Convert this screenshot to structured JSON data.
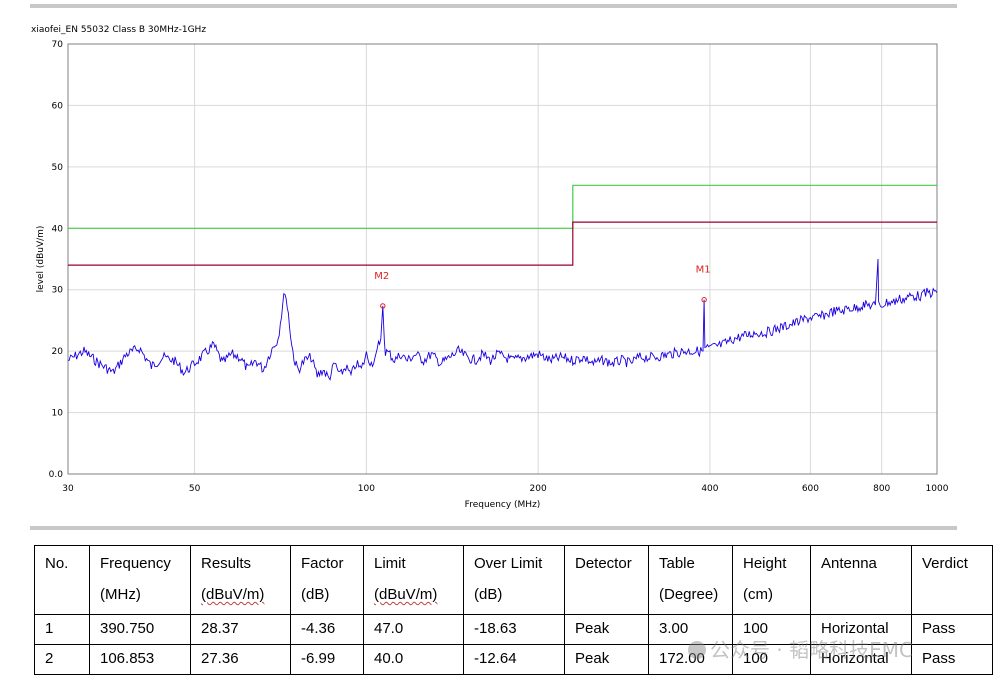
{
  "chart_data": {
    "type": "line",
    "title": "xiaofei_EN 55032 Class B 30MHz-1GHz",
    "xlabel": "Frequency (MHz)",
    "ylabel": "level (dBuV/m)",
    "x_scale": "log",
    "xlim": [
      30,
      1000
    ],
    "ylim": [
      0,
      70
    ],
    "x_ticks": [
      30,
      50,
      100,
      200,
      400,
      600,
      800,
      1000
    ],
    "x_tick_labels": [
      "30",
      "50",
      "100",
      "200",
      "400",
      "600",
      "800",
      "1000"
    ],
    "y_ticks": [
      0,
      10,
      20,
      30,
      40,
      50,
      60,
      70
    ],
    "y_tick_labels": [
      "0.0",
      "10",
      "20",
      "30",
      "40",
      "50",
      "60",
      "70"
    ],
    "grid": true,
    "series": [
      {
        "name": "",
        "color": "#1a00e0",
        "x": [
          30,
          32,
          34,
          36,
          38,
          40,
          42,
          44,
          46,
          48,
          50,
          52,
          54,
          56,
          58,
          60,
          62,
          64,
          66,
          68,
          70,
          71,
          72,
          73,
          74,
          75,
          76,
          78,
          80,
          82,
          84,
          86,
          88,
          90,
          92,
          94,
          96,
          98,
          100,
          102,
          104,
          105,
          106,
          106.85,
          107.5,
          108,
          110,
          112,
          115,
          118,
          122,
          126,
          130,
          135,
          140,
          145,
          150,
          155,
          160,
          165,
          170,
          180,
          190,
          200,
          210,
          220,
          230,
          240,
          250,
          260,
          270,
          280,
          290,
          300,
          320,
          340,
          360,
          380,
          389,
          390.75,
          392,
          400,
          420,
          440,
          460,
          480,
          500,
          520,
          540,
          560,
          580,
          600,
          620,
          640,
          660,
          680,
          700,
          720,
          740,
          760,
          780,
          788,
          790,
          792,
          800,
          820,
          840,
          860,
          880,
          900,
          920,
          940,
          960,
          980,
          1000
        ],
        "y": [
          18.5,
          20,
          18,
          16.5,
          19.5,
          20.5,
          17.5,
          19,
          18.5,
          16.5,
          18,
          19.5,
          21,
          18,
          19.5,
          19,
          17,
          18.5,
          17,
          20,
          22,
          26,
          30,
          26,
          21,
          18,
          17,
          18.5,
          19,
          16,
          17,
          15.5,
          18,
          16,
          17.5,
          16,
          18,
          17,
          19.5,
          18,
          19,
          21,
          22,
          27.36,
          22,
          20,
          19.5,
          18.5,
          19.5,
          18.5,
          19.5,
          18.5,
          19.5,
          18,
          19,
          20,
          19,
          18.5,
          19.5,
          18.5,
          19.5,
          18.5,
          19,
          19.5,
          18.5,
          19,
          18.5,
          19,
          18,
          18.5,
          18,
          18.5,
          18,
          19,
          19,
          19.5,
          20,
          20,
          20,
          28.37,
          20.5,
          20.5,
          21,
          22,
          22.5,
          23,
          23,
          23.5,
          24,
          24.5,
          25,
          25.5,
          25.5,
          26,
          26.5,
          26.5,
          27,
          27,
          27.5,
          27.5,
          27.5,
          35,
          27.5,
          27.5,
          27.5,
          28,
          28,
          28.5,
          28.5,
          29,
          29,
          29,
          29.5,
          29.5,
          29.5
        ]
      },
      {
        "name": "",
        "color": "#44cc44",
        "x": [
          30,
          230,
          230,
          1000
        ],
        "y": [
          40,
          40,
          47,
          47
        ]
      },
      {
        "name": "",
        "color": "#9a0030",
        "x": [
          30,
          230,
          230,
          1000
        ],
        "y": [
          34,
          34,
          41,
          41
        ]
      }
    ],
    "markers": [
      {
        "label": "M1",
        "x": 390.75,
        "y": 28.37,
        "color": "#e02020"
      },
      {
        "label": "M2",
        "x": 106.853,
        "y": 27.36,
        "color": "#e02020"
      }
    ]
  },
  "table": {
    "headers": [
      [
        "No.",
        ""
      ],
      [
        "Frequency",
        "(MHz)"
      ],
      [
        "Results",
        "(dBuV/m)"
      ],
      [
        "Factor",
        "(dB)"
      ],
      [
        "Limit",
        "(dBuV/m)"
      ],
      [
        "Over Limit",
        "(dB)"
      ],
      [
        "Detector",
        ""
      ],
      [
        "Table",
        "(Degree)"
      ],
      [
        "Height",
        "(cm)"
      ],
      [
        "Antenna",
        ""
      ],
      [
        "Verdict",
        ""
      ]
    ],
    "rows": [
      [
        "1",
        "390.750",
        "28.37",
        "-4.36",
        "47.0",
        "-18.63",
        "Peak",
        "3.00",
        "100",
        "Horizontal",
        "Pass"
      ],
      [
        "2",
        "106.853",
        "27.36",
        "-6.99",
        "40.0",
        "-12.64",
        "Peak",
        "172.00",
        "100",
        "Horizontal",
        "Pass"
      ]
    ]
  },
  "watermark": "公众号 · 韬略科技EMC"
}
